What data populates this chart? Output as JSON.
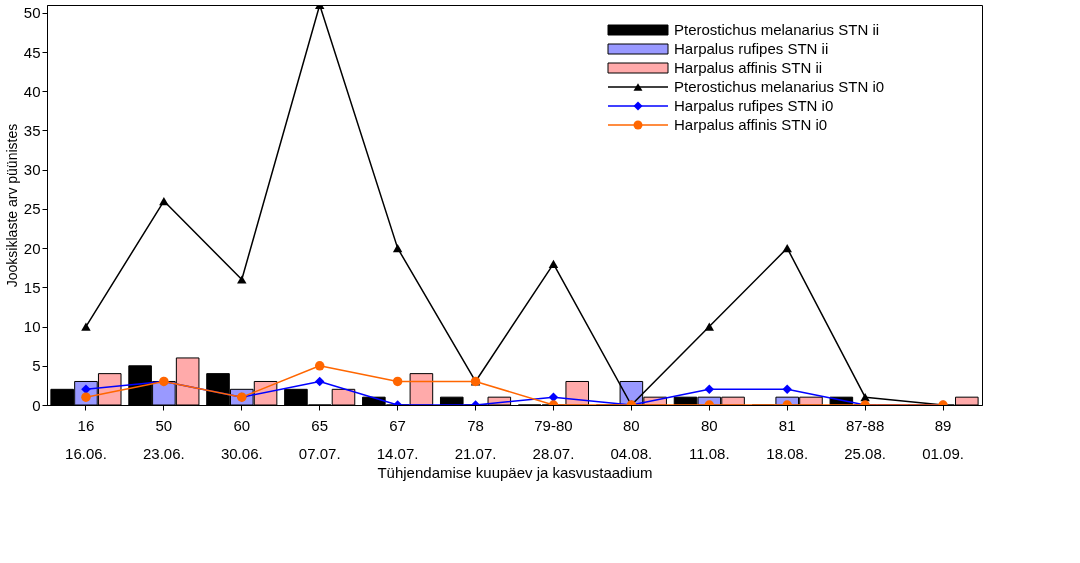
{
  "chart_data": {
    "type": "bar",
    "xlabel": "Tühjendamise kuupäev ja kasvustaadium",
    "ylabel": "Jooksiklaste arv püünistes",
    "categories": [
      "16\n16.06.",
      "50\n23.06.",
      "60\n30.06.",
      "65\n07.07.",
      "67\n14.07.",
      "78\n21.07.",
      "79-80\n28.07.",
      "80\n04.08.",
      "80\n11.08.",
      "81\n18.08.",
      "87-88\n25.08.",
      "89\n01.09."
    ],
    "ylim": [
      0,
      51
    ],
    "yticks": [
      0,
      5,
      10,
      15,
      20,
      25,
      30,
      35,
      40,
      45,
      50
    ],
    "grid": false,
    "legend": "top right",
    "series": [
      {
        "name": "Pterostichus melanarius STN ii",
        "color": "#000000",
        "values": [
          2,
          5,
          4,
          2,
          1,
          1,
          0,
          0,
          1,
          0,
          1,
          0
        ]
      },
      {
        "name": "Harpalus rufipes STN ii",
        "color": "#9999ff",
        "values": [
          3,
          3,
          2,
          0,
          0,
          0,
          0,
          3,
          1,
          1,
          0,
          0
        ]
      },
      {
        "name": "Harpalus affinis STN ii",
        "color": "#ffaaaa",
        "values": [
          4,
          6,
          3,
          2,
          4,
          1,
          3,
          1,
          1,
          1,
          0,
          1
        ]
      },
      {
        "name": "Pterostichus melanarius STN i0",
        "type": "line",
        "marker": "triangle",
        "color": "#000000",
        "values": [
          10,
          26,
          16,
          51,
          20,
          3,
          18,
          0,
          10,
          20,
          1,
          0
        ]
      },
      {
        "name": "Harpalus rufipes STN i0",
        "type": "line",
        "marker": "diamond",
        "color": "#0000ff",
        "values": [
          2,
          3,
          1,
          3,
          0,
          0,
          1,
          0,
          2,
          2,
          0,
          0
        ]
      },
      {
        "name": "Harpalus affinis STN i0",
        "type": "line",
        "marker": "circle",
        "color": "#ff6600",
        "values": [
          1,
          3,
          1,
          5,
          3,
          3,
          0,
          0,
          0,
          0,
          0,
          0
        ]
      }
    ]
  }
}
